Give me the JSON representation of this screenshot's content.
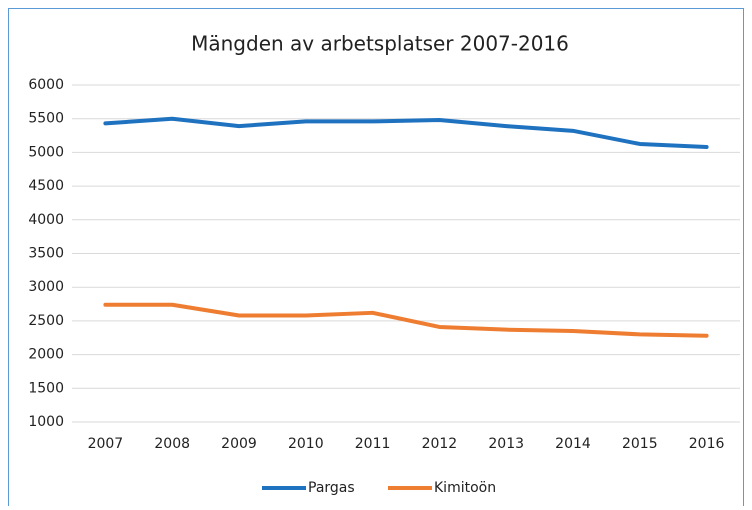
{
  "chart_data": {
    "type": "line",
    "title": "Mängden av arbetsplatser 2007-2016",
    "categories": [
      "2007",
      "2008",
      "2009",
      "2010",
      "2011",
      "2012",
      "2013",
      "2014",
      "2015",
      "2016"
    ],
    "series": [
      {
        "name": "Pargas",
        "color": "#1f72c0",
        "values": [
          5430,
          5500,
          5390,
          5460,
          5460,
          5480,
          5390,
          5320,
          5125,
          5080
        ]
      },
      {
        "name": "Kimitoön",
        "color": "#ee7d31",
        "values": [
          2740,
          2740,
          2580,
          2580,
          2620,
          2410,
          2370,
          2350,
          2300,
          2280
        ]
      }
    ],
    "ylim": [
      1000,
      6000
    ],
    "yticks": [
      1000,
      1500,
      2000,
      2500,
      3000,
      3500,
      4000,
      4500,
      5000,
      5500,
      6000
    ],
    "grid": true,
    "legend": "bottom"
  }
}
